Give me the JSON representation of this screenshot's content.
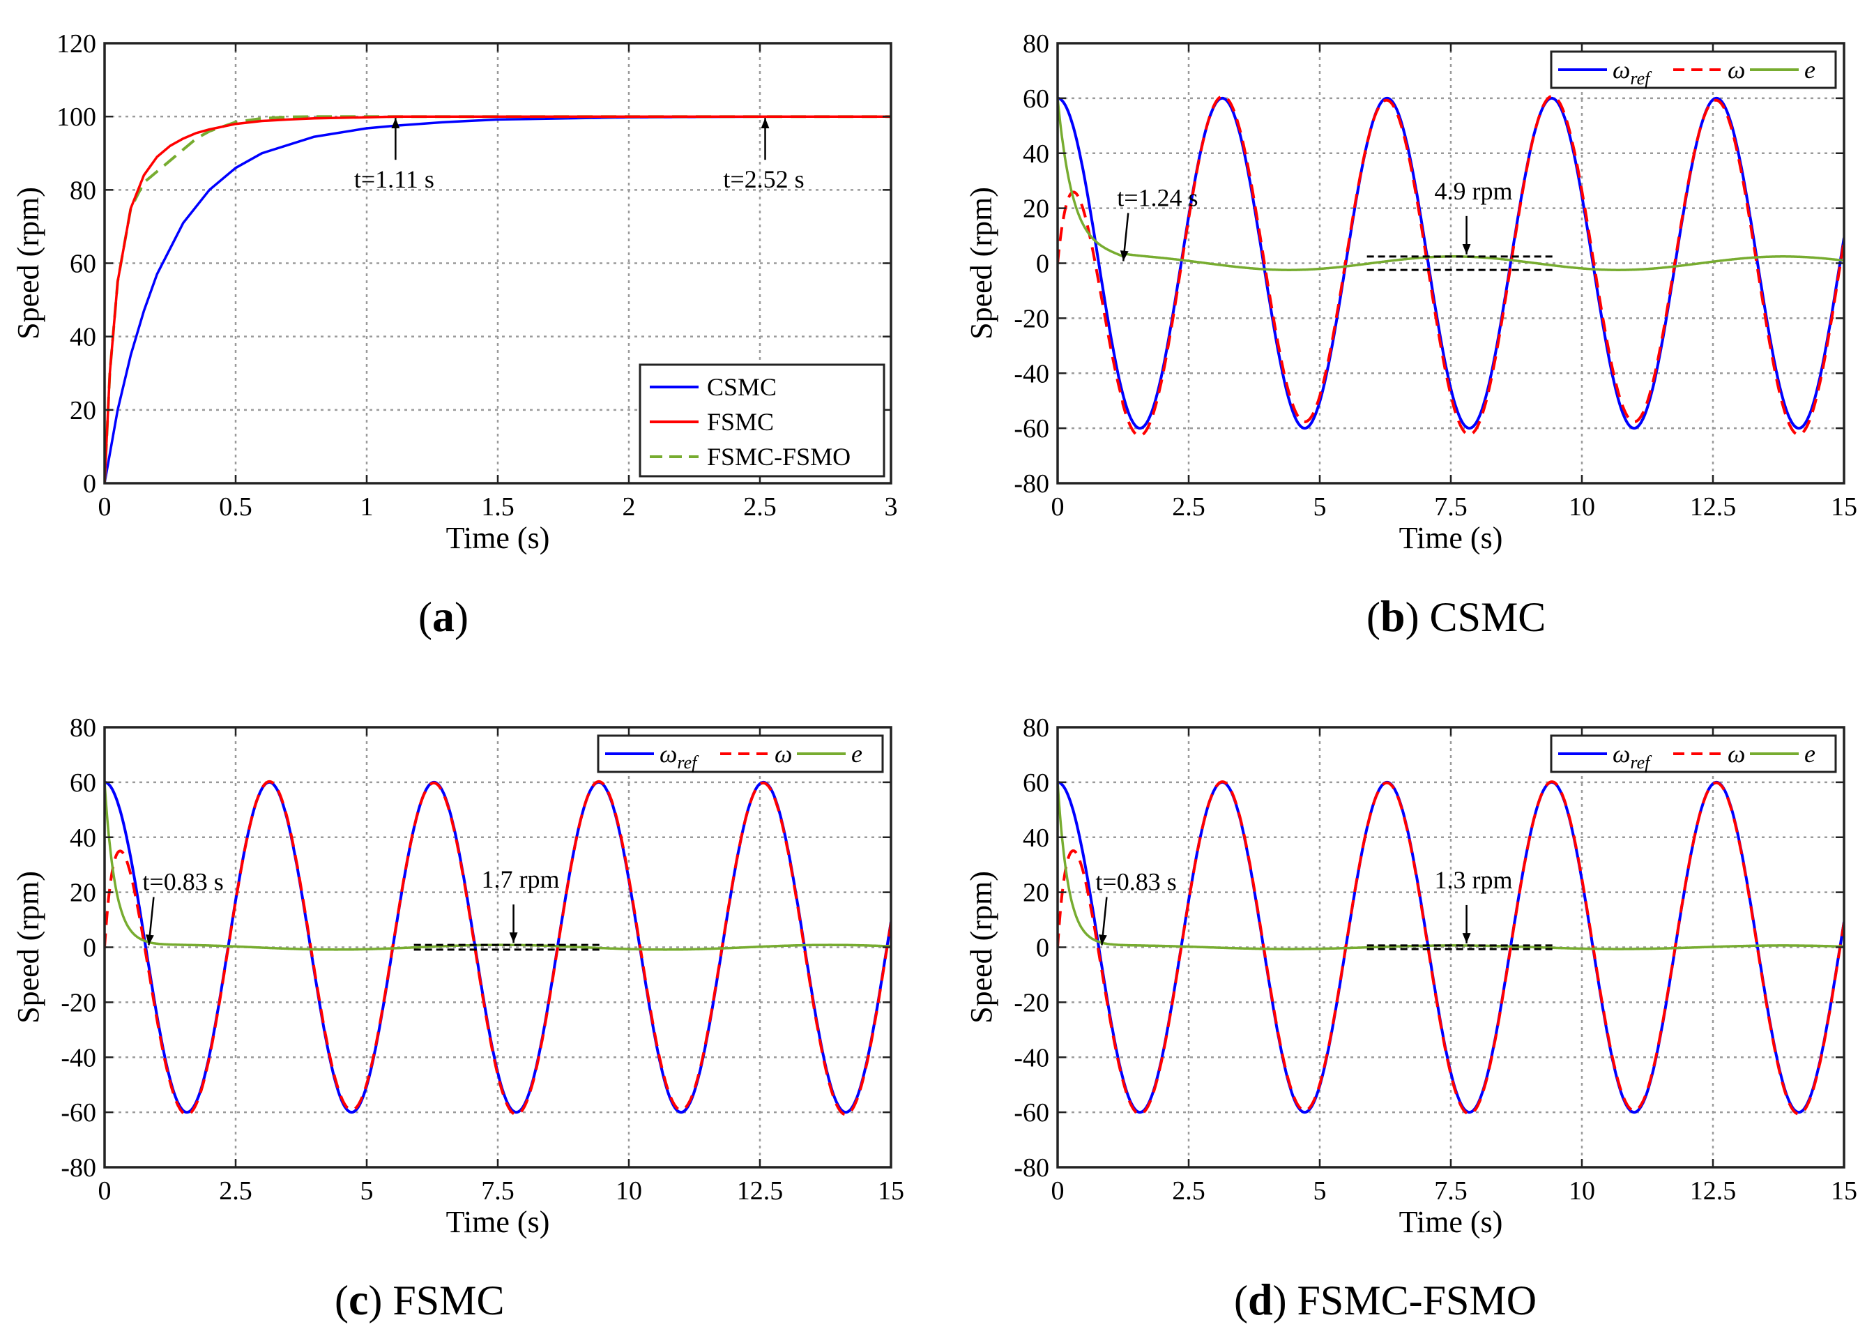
{
  "colors": {
    "csmc": "#0000ff",
    "fsmc": "#ff0000",
    "fsmo": "#77ac30",
    "grid": "#9a9a9a",
    "ref": "#0000ff",
    "w": "#ff0000",
    "e": "#77ac30"
  },
  "chart_data": [
    {
      "id": "a",
      "type": "line",
      "caption_label": "a",
      "caption_text": "",
      "xlabel": "Time (s)",
      "ylabel": "Speed (rpm)",
      "xlim": [
        0,
        3
      ],
      "ylim": [
        0,
        120
      ],
      "xticks": [
        0,
        0.5,
        1,
        1.5,
        2,
        2.5,
        3
      ],
      "xtick_labels": [
        "0",
        "0.5",
        "1",
        "1.5",
        "2",
        "2.5",
        "3"
      ],
      "yticks": [
        0,
        20,
        40,
        60,
        80,
        100,
        120
      ],
      "ytick_labels": [
        "0",
        "20",
        "40",
        "60",
        "80",
        "100",
        "120"
      ],
      "legend_position": "bottom-right",
      "legend": [
        "CSMC",
        "FSMC",
        "FSMC-FSMO"
      ],
      "series": [
        {
          "name": "CSMC",
          "style": "solid",
          "color_key": "csmc",
          "x": [
            0,
            0.05,
            0.1,
            0.15,
            0.2,
            0.3,
            0.4,
            0.5,
            0.6,
            0.8,
            1.0,
            1.11,
            1.3,
            1.5,
            2.0,
            2.52,
            3.0
          ],
          "y": [
            0,
            20,
            35,
            47,
            57,
            71,
            80,
            86,
            90,
            94.5,
            96.8,
            97.5,
            98.5,
            99.2,
            99.8,
            100,
            100
          ]
        },
        {
          "name": "FSMC",
          "style": "solid",
          "color_key": "fsmc",
          "x": [
            0,
            0.02,
            0.05,
            0.1,
            0.15,
            0.2,
            0.25,
            0.3,
            0.35,
            0.4,
            0.5,
            0.6,
            0.7,
            0.8,
            1.0,
            1.11,
            1.5,
            2.0,
            2.52,
            3.0
          ],
          "y": [
            0,
            30,
            55,
            75,
            84,
            89,
            92,
            94,
            95.5,
            96.5,
            98,
            98.8,
            99.2,
            99.5,
            99.8,
            100,
            100,
            100,
            100,
            100
          ]
        },
        {
          "name": "FSMC-FSMO",
          "style": "dashed",
          "color_key": "fsmo",
          "x": [
            0,
            0.02,
            0.05,
            0.1,
            0.15,
            0.2,
            0.25,
            0.3,
            0.35,
            0.4,
            0.5,
            0.6,
            0.7,
            0.8,
            1.0,
            1.11,
            1.5,
            2.0,
            2.52,
            3.0
          ],
          "y": [
            0,
            30,
            55,
            75,
            82,
            85,
            88,
            91,
            94,
            96,
            98.5,
            99.5,
            99.9,
            100,
            100,
            100,
            100,
            100,
            100,
            100
          ]
        }
      ],
      "annotations": [
        {
          "text": "t=1.11 s",
          "x": 1.11,
          "y": 100
        },
        {
          "text": "t=2.52 s",
          "x": 2.52,
          "y": 100
        }
      ]
    },
    {
      "id": "b",
      "type": "line",
      "caption_label": "b",
      "caption_text": "CSMC",
      "xlabel": "Time (s)",
      "ylabel": "Speed (rpm)",
      "xlim": [
        0,
        15
      ],
      "ylim": [
        -80,
        80
      ],
      "xticks": [
        0,
        2.5,
        5,
        7.5,
        10,
        12.5,
        15
      ],
      "xtick_labels": [
        "0",
        "2.5",
        "5",
        "7.5",
        "10",
        "12.5",
        "15"
      ],
      "yticks": [
        -80,
        -60,
        -40,
        -20,
        0,
        20,
        40,
        60,
        80
      ],
      "ytick_labels": [
        "-80",
        "-60",
        "-40",
        "-20",
        "0",
        "20",
        "40",
        "60",
        "80"
      ],
      "legend_position": "top-right",
      "legend": [
        "ω_ref",
        "ω",
        "e"
      ],
      "reference": {
        "amplitude": 60,
        "angular_freq": 2,
        "phase": "cosine"
      },
      "tracking_error": {
        "settle_time": 1.24,
        "steady_amplitude": 2.45
      },
      "annotations": [
        {
          "text": "t=1.24 s",
          "x": 1.24,
          "y": 0
        },
        {
          "text": "4.9 rpm",
          "x": 7.8,
          "y": 2.45
        }
      ]
    },
    {
      "id": "c",
      "type": "line",
      "caption_label": "c",
      "caption_text": "FSMC",
      "xlabel": "Time (s)",
      "ylabel": "Speed (rpm)",
      "xlim": [
        0,
        15
      ],
      "ylim": [
        -80,
        80
      ],
      "xticks": [
        0,
        2.5,
        5,
        7.5,
        10,
        12.5,
        15
      ],
      "xtick_labels": [
        "0",
        "2.5",
        "5",
        "7.5",
        "10",
        "12.5",
        "15"
      ],
      "yticks": [
        -80,
        -60,
        -40,
        -20,
        0,
        20,
        40,
        60,
        80
      ],
      "ytick_labels": [
        "-80",
        "-60",
        "-40",
        "-20",
        "0",
        "20",
        "40",
        "60",
        "80"
      ],
      "legend_position": "top-right",
      "legend": [
        "ω_ref",
        "ω",
        "e"
      ],
      "reference": {
        "amplitude": 60,
        "angular_freq": 2,
        "phase": "cosine"
      },
      "tracking_error": {
        "settle_time": 0.83,
        "steady_amplitude": 0.85
      },
      "annotations": [
        {
          "text": "t=0.83 s",
          "x": 0.83,
          "y": 0
        },
        {
          "text": "1.7 rpm",
          "x": 7.8,
          "y": 0.85
        }
      ]
    },
    {
      "id": "d",
      "type": "line",
      "caption_label": "d",
      "caption_text": "FSMC-FSMO",
      "xlabel": "Time (s)",
      "ylabel": "Speed (rpm)",
      "xlim": [
        0,
        15
      ],
      "ylim": [
        -80,
        80
      ],
      "xticks": [
        0,
        2.5,
        5,
        7.5,
        10,
        12.5,
        15
      ],
      "xtick_labels": [
        "0",
        "2.5",
        "5",
        "7.5",
        "10",
        "12.5",
        "15"
      ],
      "yticks": [
        -80,
        -60,
        -40,
        -20,
        0,
        20,
        40,
        60,
        80
      ],
      "ytick_labels": [
        "-80",
        "-60",
        "-40",
        "-20",
        "0",
        "20",
        "40",
        "60",
        "80"
      ],
      "legend_position": "top-right",
      "legend": [
        "ω_ref",
        "ω",
        "e"
      ],
      "reference": {
        "amplitude": 60,
        "angular_freq": 2,
        "phase": "cosine"
      },
      "tracking_error": {
        "settle_time": 0.83,
        "steady_amplitude": 0.65
      },
      "annotations": [
        {
          "text": "t=0.83 s",
          "x": 0.83,
          "y": 0
        },
        {
          "text": "1.3 rpm",
          "x": 7.8,
          "y": 0.65
        }
      ]
    }
  ]
}
